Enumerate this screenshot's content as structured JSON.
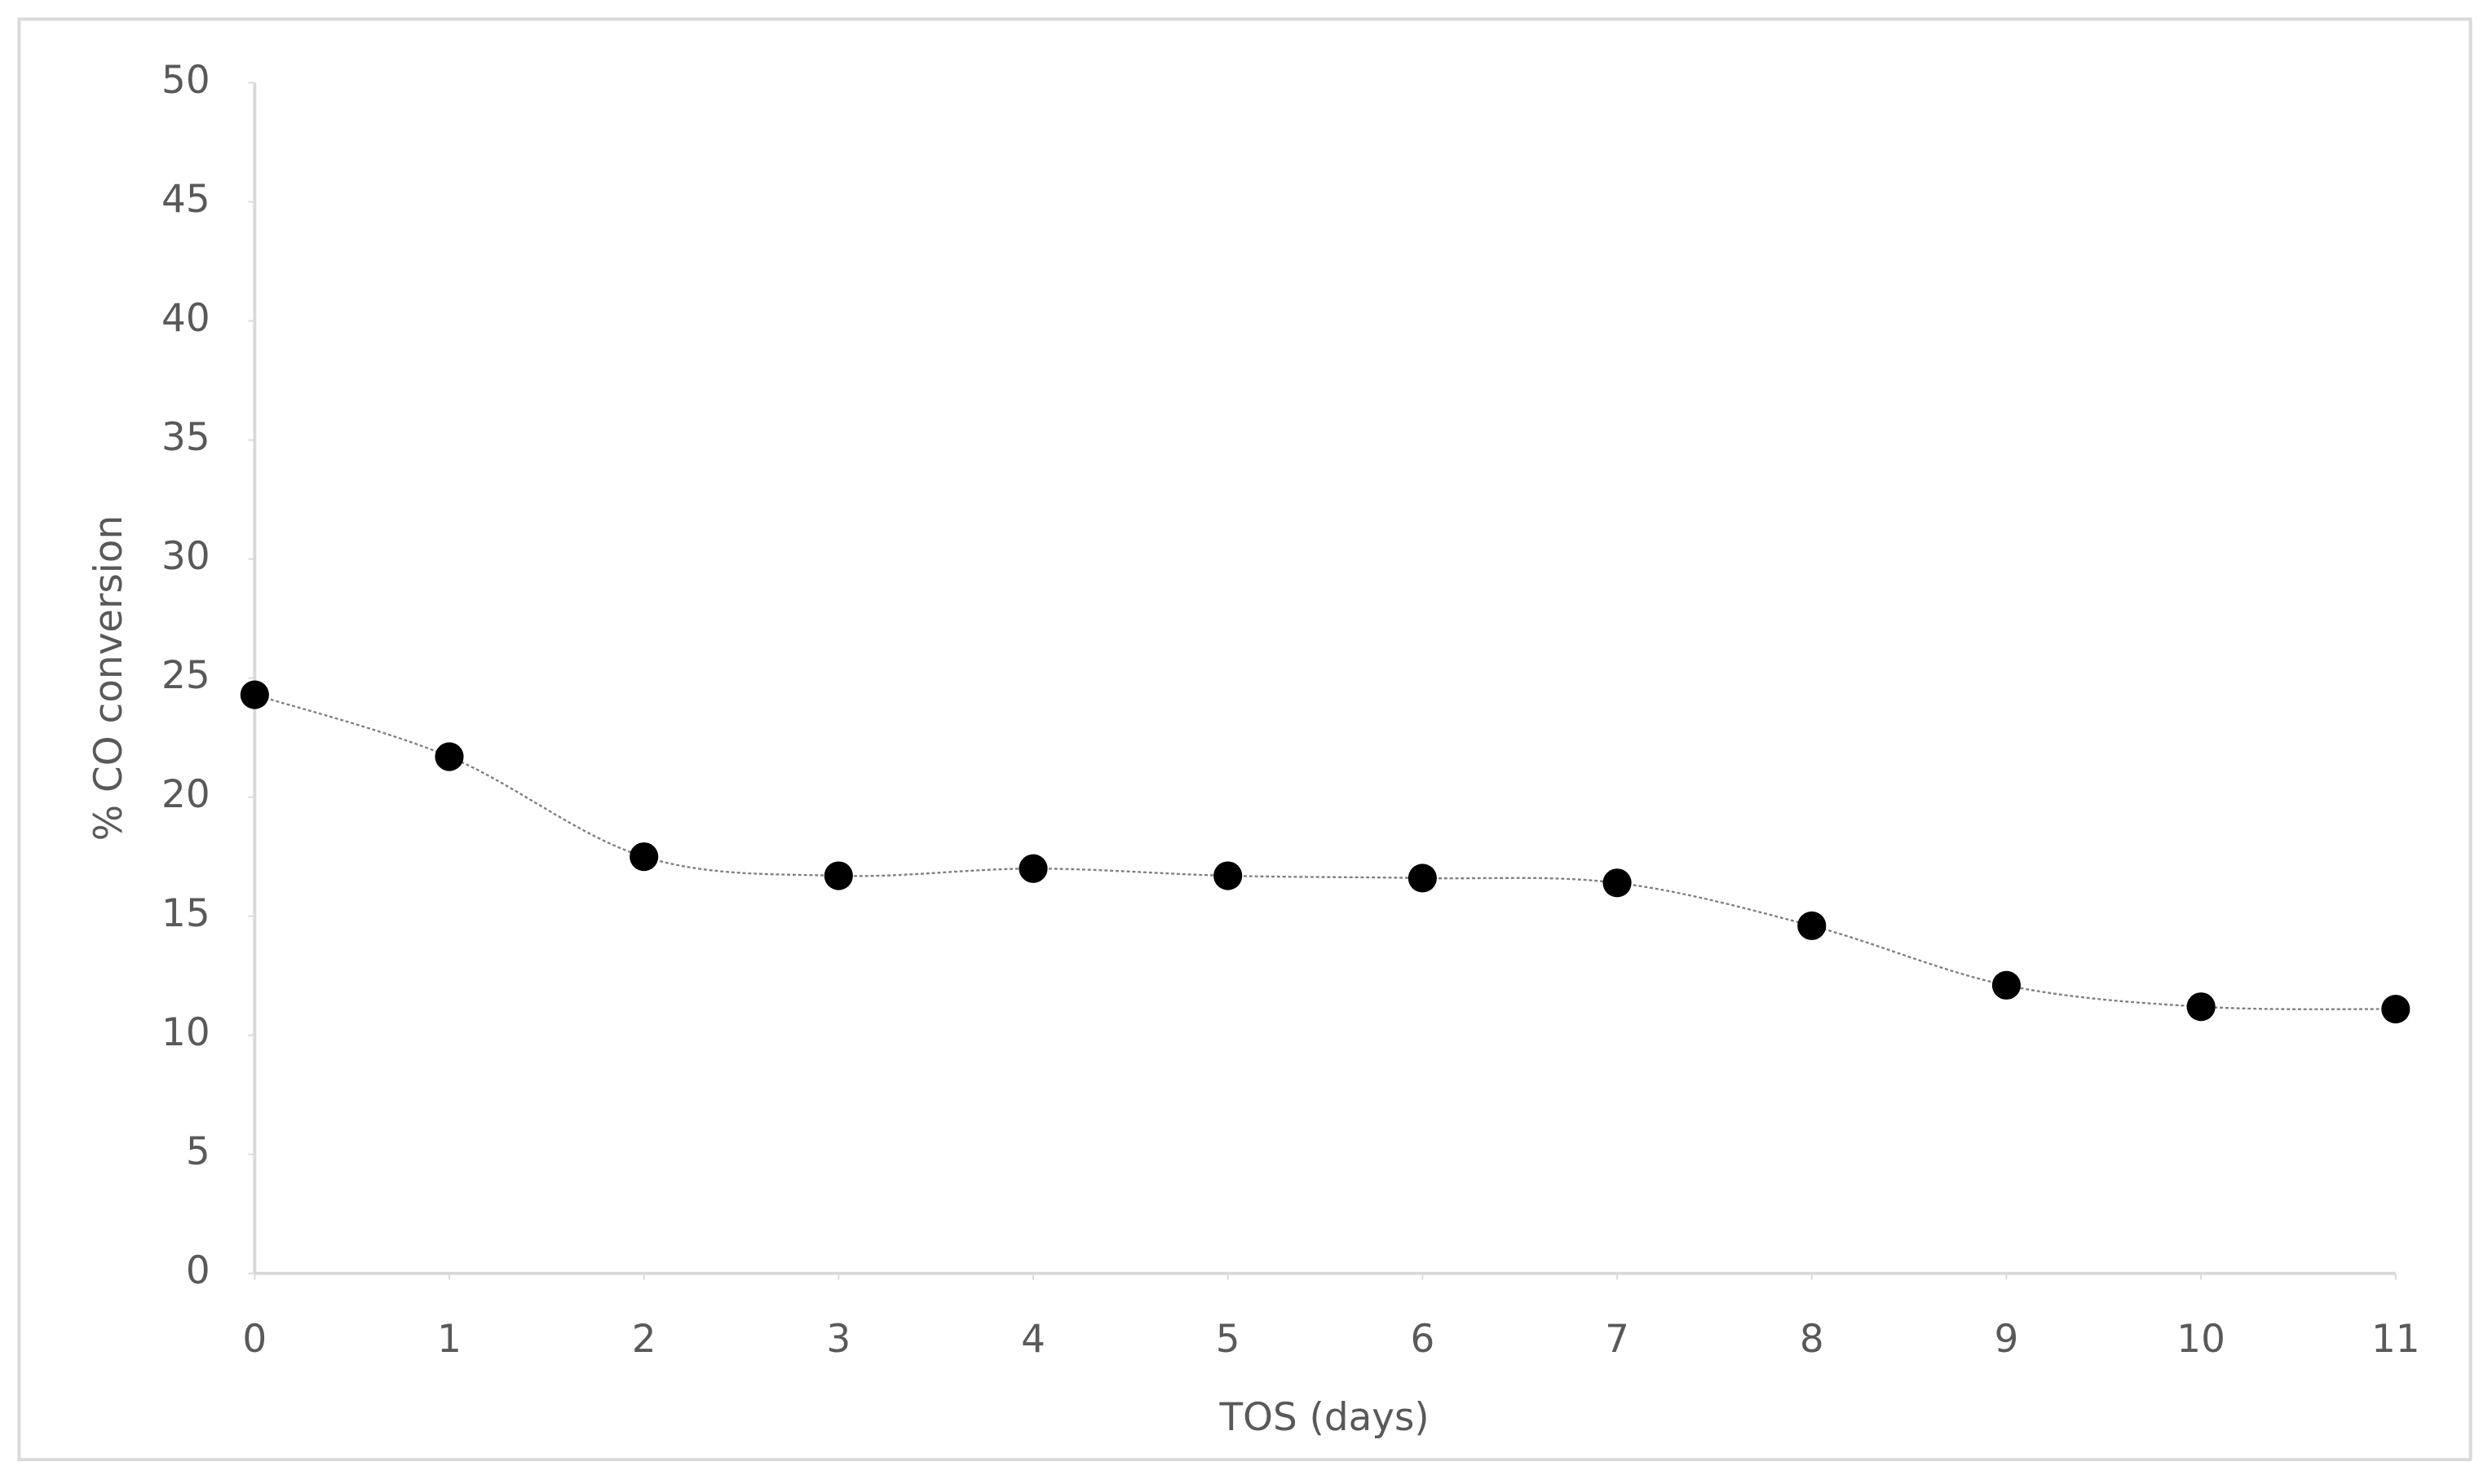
{
  "chart_data": {
    "type": "line",
    "x_label": "TOS (days)",
    "y_label": "% CO conversion",
    "x": [
      0,
      1,
      2,
      3,
      4,
      5,
      6,
      7,
      8,
      9,
      10,
      11
    ],
    "series": [
      {
        "color": "#000000",
        "values": [
          24.3,
          21.7,
          17.5,
          16.7,
          17.0,
          16.7,
          16.6,
          16.4,
          14.6,
          12.1,
          11.2,
          11.1
        ]
      }
    ],
    "xlim": [
      0,
      11
    ],
    "xticks": [
      0,
      1,
      2,
      3,
      4,
      5,
      6,
      7,
      8,
      9,
      10,
      11
    ],
    "ylim": [
      0,
      50
    ],
    "yticks": [
      0,
      5,
      10,
      15,
      20,
      25,
      30,
      35,
      40,
      45,
      50
    ],
    "grid": false,
    "smooth": true
  }
}
